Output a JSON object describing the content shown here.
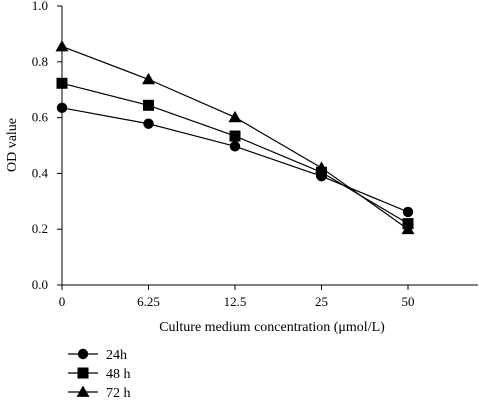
{
  "chart_data": {
    "type": "line",
    "title": "",
    "xlabel": "Culture medium concentration (μmol/L)",
    "ylabel": "OD value",
    "categories": [
      "0",
      "6.25",
      "12.5",
      "25",
      "50"
    ],
    "ylim": [
      0,
      1.0
    ],
    "yticks": [
      "0.0",
      "0.2",
      "0.4",
      "0.6",
      "0.8",
      "1.0"
    ],
    "ytick_values": [
      0,
      0.2,
      0.4,
      0.6,
      0.8,
      1.0
    ],
    "grid": false,
    "legend_position": "bottom-left",
    "series": [
      {
        "name": "24h",
        "marker": "circle",
        "values": [
          0.635,
          0.578,
          0.497,
          0.39,
          0.262
        ]
      },
      {
        "name": "48 h",
        "marker": "square",
        "values": [
          0.723,
          0.644,
          0.534,
          0.404,
          0.22
        ]
      },
      {
        "name": "72 h",
        "marker": "triangle",
        "values": [
          0.855,
          0.737,
          0.601,
          0.42,
          0.2
        ]
      }
    ],
    "color": "#000000"
  }
}
